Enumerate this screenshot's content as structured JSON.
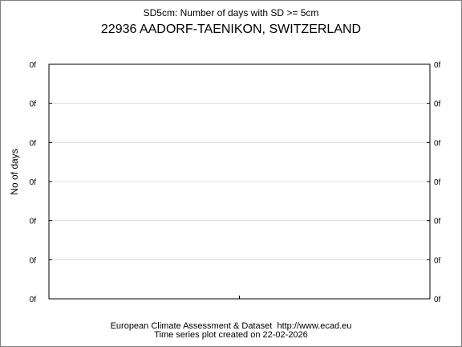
{
  "header": {
    "subtitle": "SD5cm: Number of days with SD >= 5cm",
    "title": "22936 AADORF-TAENIKON, SWITZERLAND"
  },
  "footer": {
    "line1": "European Climate Assessment & Dataset  http://www.ecad.eu",
    "line2": "Time series plot created on 22-02-2026"
  },
  "colors": {
    "grid": "#dcdcdc",
    "axis": "#000000",
    "frame": "#808080"
  },
  "chart_data": {
    "type": "line",
    "title": "22936 AADORF-TAENIKON, SWITZERLAND",
    "subtitle": "SD5cm: Number of days with SD >= 5cm",
    "xlabel": "",
    "ylabel": "No of days",
    "x": [],
    "series": [],
    "y_tick_labels": [
      "0f",
      "0f",
      "0f",
      "0f",
      "0f",
      "0f",
      "0f"
    ],
    "grid": true,
    "legend": "none"
  }
}
